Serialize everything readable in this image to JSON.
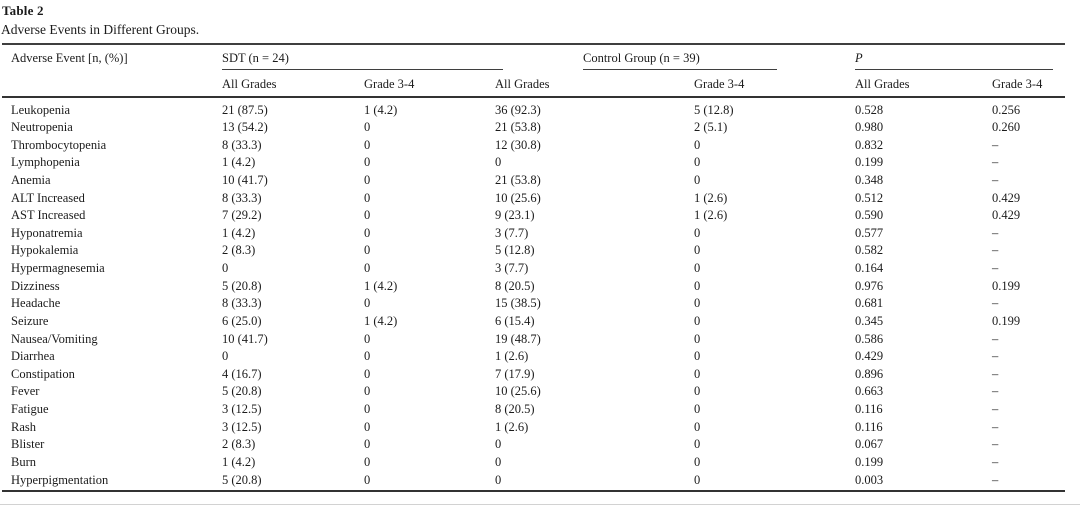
{
  "title": "Table 2",
  "caption": "Adverse Events in Different Groups.",
  "header": {
    "row_label": "Adverse Event [n, (%)]",
    "groups": [
      {
        "label": "SDT (n = 24)"
      },
      {
        "label": "Control Group (n = 39)"
      },
      {
        "label": "P"
      }
    ],
    "subheaders": [
      "All Grades",
      "Grade 3-4",
      "All Grades",
      "Grade 3-4",
      "All Grades",
      "Grade 3-4"
    ]
  },
  "rows": [
    {
      "event": "Leukopenia",
      "values": [
        "21 (87.5)",
        "1 (4.2)",
        "36 (92.3)",
        "5 (12.8)",
        "0.528",
        "0.256"
      ]
    },
    {
      "event": "Neutropenia",
      "values": [
        "13 (54.2)",
        "0",
        "21 (53.8)",
        "2 (5.1)",
        "0.980",
        "0.260"
      ]
    },
    {
      "event": "Thrombocytopenia",
      "values": [
        "8 (33.3)",
        "0",
        "12 (30.8)",
        "0",
        "0.832",
        "–"
      ]
    },
    {
      "event": "Lymphopenia",
      "values": [
        "1 (4.2)",
        "0",
        "0",
        "0",
        "0.199",
        "–"
      ]
    },
    {
      "event": "Anemia",
      "values": [
        "10 (41.7)",
        "0",
        "21 (53.8)",
        "0",
        "0.348",
        "–"
      ]
    },
    {
      "event": "ALT Increased",
      "values": [
        "8 (33.3)",
        "0",
        "10 (25.6)",
        "1 (2.6)",
        "0.512",
        "0.429"
      ]
    },
    {
      "event": "AST Increased",
      "values": [
        "7 (29.2)",
        "0",
        "9 (23.1)",
        "1 (2.6)",
        "0.590",
        "0.429"
      ]
    },
    {
      "event": "Hyponatremia",
      "values": [
        "1 (4.2)",
        "0",
        "3 (7.7)",
        "0",
        "0.577",
        "–"
      ]
    },
    {
      "event": "Hypokalemia",
      "values": [
        "2 (8.3)",
        "0",
        "5 (12.8)",
        "0",
        "0.582",
        "–"
      ]
    },
    {
      "event": "Hypermagnesemia",
      "values": [
        "0",
        "0",
        "3 (7.7)",
        "0",
        "0.164",
        "–"
      ]
    },
    {
      "event": "Dizziness",
      "values": [
        "5 (20.8)",
        "1 (4.2)",
        "8 (20.5)",
        "0",
        "0.976",
        "0.199"
      ]
    },
    {
      "event": "Headache",
      "values": [
        "8 (33.3)",
        "0",
        "15 (38.5)",
        "0",
        "0.681",
        "–"
      ]
    },
    {
      "event": "Seizure",
      "values": [
        "6 (25.0)",
        "1 (4.2)",
        "6 (15.4)",
        "0",
        "0.345",
        "0.199"
      ]
    },
    {
      "event": "Nausea/Vomiting",
      "values": [
        "10 (41.7)",
        "0",
        "19 (48.7)",
        "0",
        "0.586",
        "–"
      ]
    },
    {
      "event": "Diarrhea",
      "values": [
        "0",
        "0",
        "1 (2.6)",
        "0",
        "0.429",
        "–"
      ]
    },
    {
      "event": "Constipation",
      "values": [
        "4 (16.7)",
        "0",
        "7 (17.9)",
        "0",
        "0.896",
        "–"
      ]
    },
    {
      "event": "Fever",
      "values": [
        "5 (20.8)",
        "0",
        "10 (25.6)",
        "0",
        "0.663",
        "–"
      ]
    },
    {
      "event": "Fatigue",
      "values": [
        "3 (12.5)",
        "0",
        "8 (20.5)",
        "0",
        "0.116",
        "–"
      ]
    },
    {
      "event": "Rash",
      "values": [
        "3 (12.5)",
        "0",
        "1 (2.6)",
        "0",
        "0.116",
        "–"
      ]
    },
    {
      "event": "Blister",
      "values": [
        "2 (8.3)",
        "0",
        "0",
        "0",
        "0.067",
        "–"
      ]
    },
    {
      "event": "Burn",
      "values": [
        "1 (4.2)",
        "0",
        "0",
        "0",
        "0.199",
        "–"
      ]
    },
    {
      "event": "Hyperpigmentation",
      "values": [
        "5 (20.8)",
        "0",
        "0",
        "0",
        "0.003",
        "–"
      ]
    }
  ],
  "colors": {
    "text": "#1b1b1b",
    "rule_dark": "#333333",
    "rule_light": "#d2d2d2"
  }
}
